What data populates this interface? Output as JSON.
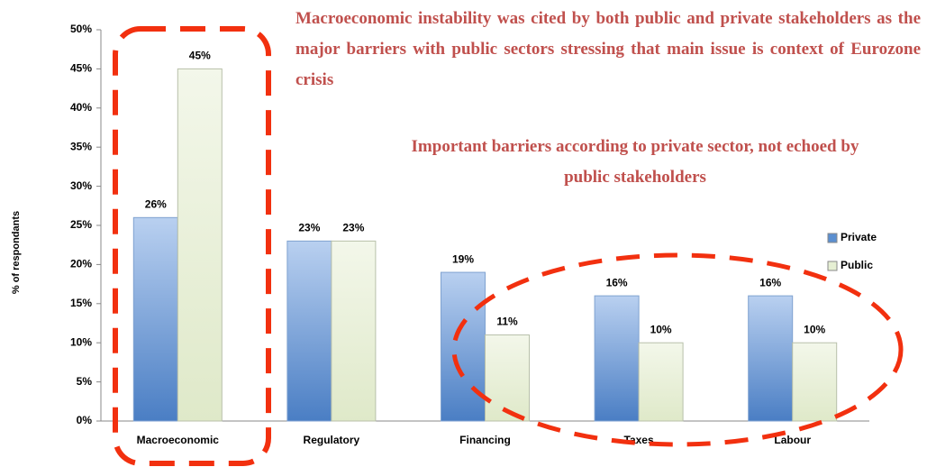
{
  "chart_data": {
    "type": "bar",
    "y_axis_label": "% of respondants",
    "annotations": [
      "Macroeconomic instability was cited by both public and private stakeholders as the major barriers with public sectors stressing that main issue is context of Eurozone crisis",
      "Important barriers according to private sector, not echoed by public stakeholders"
    ],
    "categories": [
      "Macroeconomic",
      "Regulatory",
      "Financing",
      "Taxes",
      "Labour"
    ],
    "series": [
      {
        "name": "Private",
        "color": "#5b8fd0",
        "values": [
          26,
          23,
          19,
          16,
          16
        ],
        "value_labels": [
          "26%",
          "23%",
          "19%",
          "16%",
          "16%"
        ]
      },
      {
        "name": "Public",
        "color": "#e6efd3",
        "values": [
          45,
          23,
          11,
          10,
          10
        ],
        "value_labels": [
          "45%",
          "23%",
          "11%",
          "10%",
          "10%"
        ]
      }
    ],
    "ylim": [
      0,
      50
    ],
    "yticks": [
      {
        "value": 0,
        "label": "0%"
      },
      {
        "value": 5,
        "label": "5%"
      },
      {
        "value": 10,
        "label": "10%"
      },
      {
        "value": 15,
        "label": "15%"
      },
      {
        "value": 20,
        "label": "20%"
      },
      {
        "value": 25,
        "label": "25%"
      },
      {
        "value": 30,
        "label": "30%"
      },
      {
        "value": 35,
        "label": "35%"
      },
      {
        "value": 40,
        "label": "40%"
      },
      {
        "value": 45,
        "label": "45%"
      },
      {
        "value": 50,
        "label": "50%"
      }
    ],
    "legend": "right"
  }
}
